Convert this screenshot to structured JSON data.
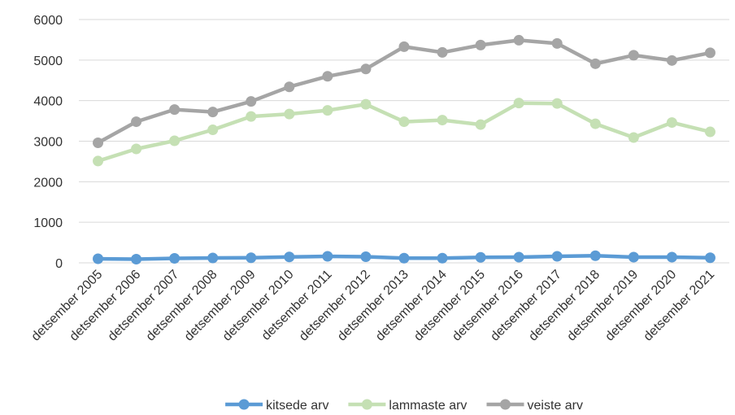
{
  "chart_data": {
    "type": "line",
    "categories": [
      "detsember 2005",
      "detsember 2006",
      "detsember 2007",
      "detsember 2008",
      "detsember 2009",
      "detsember 2010",
      "detsember 2011",
      "detsember 2012",
      "detsember 2013",
      "detsember 2014",
      "detsember 2015",
      "detsember 2016",
      "detsember 2017",
      "detsember 2018",
      "detsember 2019",
      "detsember 2020",
      "detsember 2021"
    ],
    "ylim": [
      0,
      6000
    ],
    "yticks": [
      0,
      1000,
      2000,
      3000,
      4000,
      5000,
      6000
    ],
    "grid": true,
    "legend_position": "bottom",
    "series": [
      {
        "name": "kitsede arv",
        "color": "#5b9bd5",
        "values": [
          100,
          90,
          110,
          120,
          125,
          145,
          160,
          150,
          115,
          115,
          135,
          140,
          160,
          175,
          140,
          140,
          125
        ]
      },
      {
        "name": "lammaste arv",
        "color": "#c5e0b4",
        "values": [
          2510,
          2810,
          3010,
          3280,
          3610,
          3670,
          3760,
          3910,
          3480,
          3520,
          3410,
          3940,
          3930,
          3430,
          3090,
          3460,
          3230
        ]
      },
      {
        "name": "veiste arv",
        "color": "#a5a5a5",
        "values": [
          2960,
          3480,
          3780,
          3720,
          3980,
          4340,
          4600,
          4780,
          5330,
          5190,
          5370,
          5490,
          5410,
          4910,
          5120,
          4990,
          5180
        ]
      }
    ]
  }
}
